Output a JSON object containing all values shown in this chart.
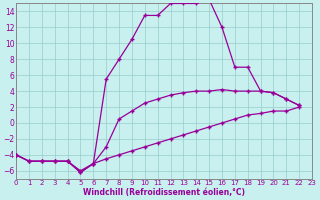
{
  "xlabel": "Windchill (Refroidissement éolien,°C)",
  "background_color": "#c8f0ee",
  "grid_color": "#99cccc",
  "line_color": "#990099",
  "xlim": [
    0,
    23
  ],
  "ylim": [
    -7,
    15
  ],
  "yticks": [
    -6,
    -4,
    -2,
    0,
    2,
    4,
    6,
    8,
    10,
    12,
    14
  ],
  "xticks": [
    0,
    1,
    2,
    3,
    4,
    5,
    6,
    7,
    8,
    9,
    10,
    11,
    12,
    13,
    14,
    15,
    16,
    17,
    18,
    19,
    20,
    21,
    22,
    23
  ],
  "line1_x": [
    0,
    1,
    2,
    3,
    4,
    5,
    6,
    7,
    8,
    9,
    10,
    11,
    12,
    13,
    14,
    15,
    16,
    17,
    18,
    19,
    20,
    21,
    22
  ],
  "line1_y": [
    -4,
    -4.8,
    -4.8,
    -4.8,
    -4.8,
    -6.2,
    -5.1,
    5.5,
    8.0,
    10.5,
    13.5,
    13.5,
    15.0,
    15.0,
    15.0,
    15.5,
    12.0,
    7.0,
    7.0,
    4.0,
    3.8,
    3.0,
    2.2
  ],
  "line2_x": [
    0,
    1,
    2,
    3,
    4,
    5,
    6,
    7,
    8,
    9,
    10,
    11,
    12,
    13,
    14,
    15,
    16,
    17,
    18,
    19,
    20,
    21,
    22
  ],
  "line2_y": [
    -4,
    -4.8,
    -4.8,
    -4.8,
    -4.8,
    -6.2,
    -5.1,
    -3.0,
    0.5,
    1.5,
    2.5,
    3.0,
    3.5,
    3.8,
    4.0,
    4.0,
    4.2,
    4.0,
    4.0,
    4.0,
    3.8,
    3.0,
    2.2
  ],
  "line3_x": [
    0,
    1,
    2,
    3,
    4,
    5,
    6,
    7,
    8,
    9,
    10,
    11,
    12,
    13,
    14,
    15,
    16,
    17,
    18,
    19,
    20,
    21,
    22
  ],
  "line3_y": [
    -4,
    -4.8,
    -4.8,
    -4.8,
    -4.8,
    -6.0,
    -5.1,
    -4.5,
    -4.0,
    -3.5,
    -3.0,
    -2.5,
    -2.0,
    -1.5,
    -1.0,
    -0.5,
    0.0,
    0.5,
    1.0,
    1.2,
    1.5,
    1.5,
    2.0
  ]
}
